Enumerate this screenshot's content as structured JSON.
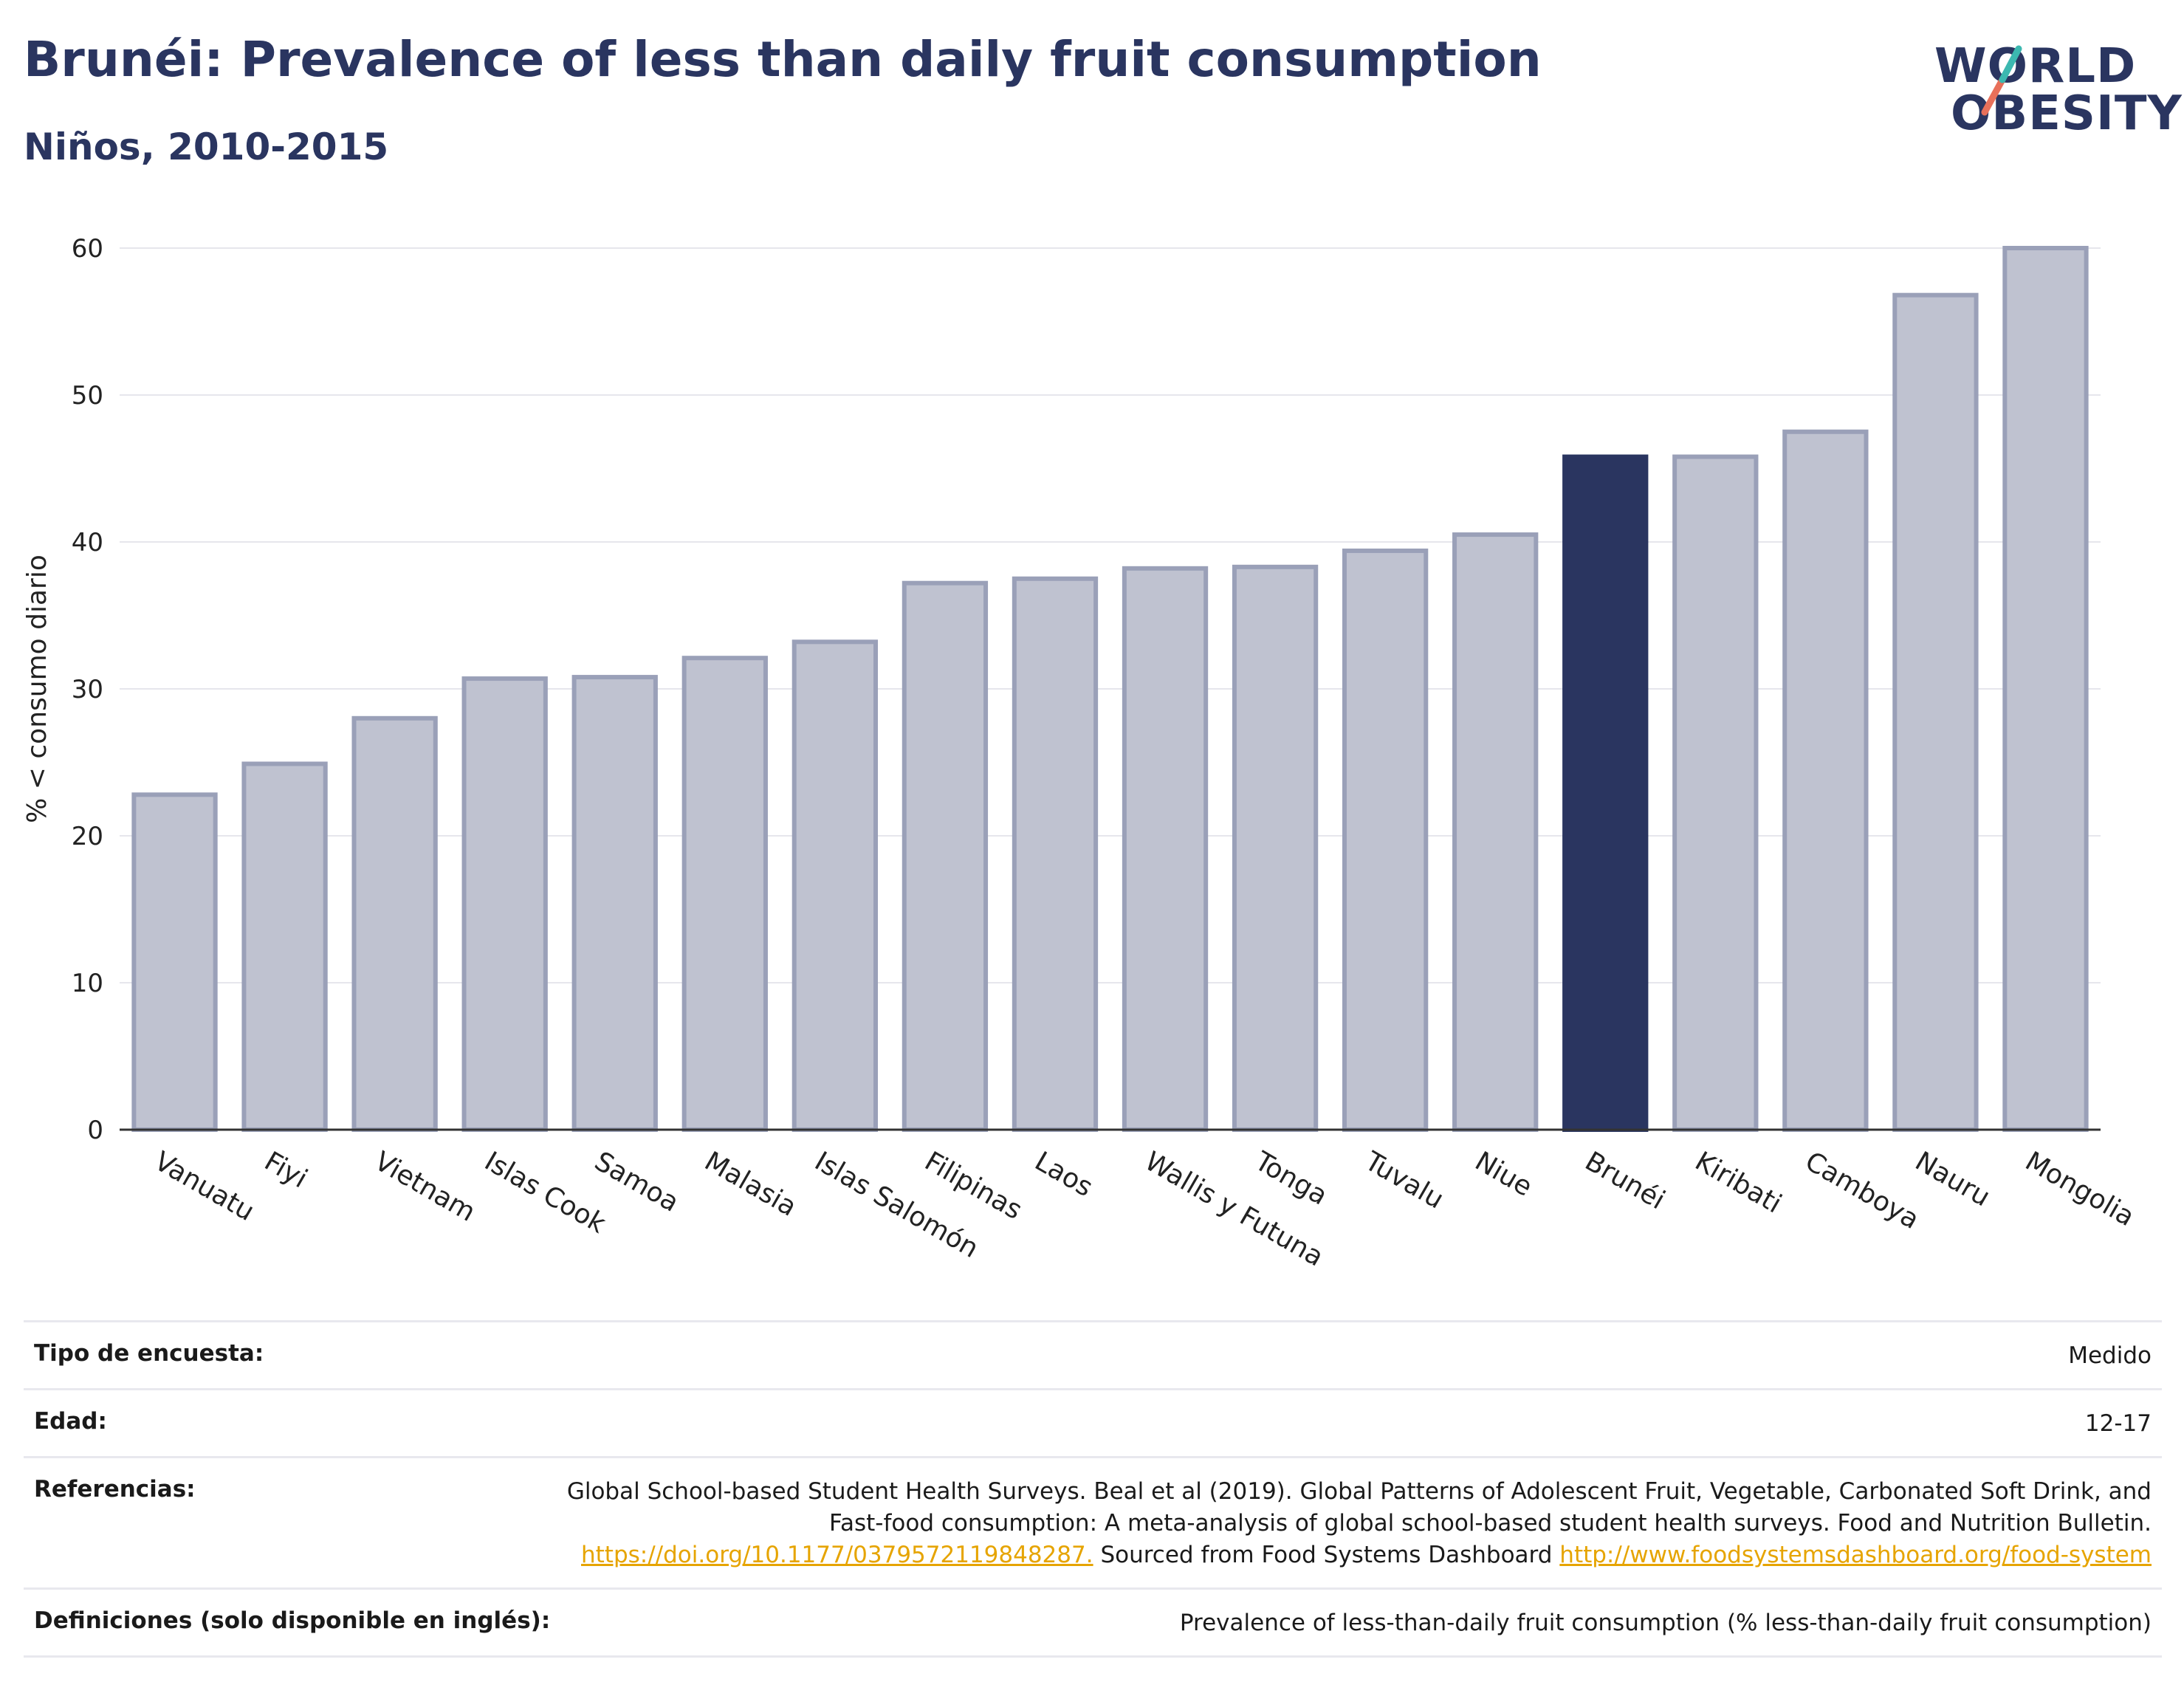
{
  "header": {
    "title": "Brunéi: Prevalence of less than daily fruit consumption",
    "subtitle": "Niños, 2010-2015"
  },
  "logo": {
    "line1": "WORLD",
    "line2": "OBESITY"
  },
  "chart_data": {
    "type": "bar",
    "title": "Brunéi: Prevalence of less than daily fruit consumption",
    "subtitle": "Niños, 2010-2015",
    "ylabel": "% < consumo diario",
    "xlabel": "",
    "ylim": [
      0,
      60
    ],
    "yticks": [
      0,
      10,
      20,
      30,
      40,
      50,
      60
    ],
    "grid": true,
    "highlight": "Brunéi",
    "colors": {
      "bar": "#bfc2d0",
      "bar_edge": "#9aa0b8",
      "highlight": "#2a3560"
    },
    "categories": [
      "Vanuatu",
      "Fiyi",
      "Vietnam",
      "Islas Cook",
      "Samoa",
      "Malasia",
      "Islas Salomón",
      "Filipinas",
      "Laos",
      "Wallis y Futuna",
      "Tonga",
      "Tuvalu",
      "Niue",
      "Brunéi",
      "Kiribati",
      "Camboya",
      "Nauru",
      "Mongolia"
    ],
    "values": [
      22.8,
      24.9,
      28.0,
      30.7,
      30.8,
      32.1,
      33.2,
      37.2,
      37.5,
      38.2,
      38.3,
      39.4,
      40.5,
      45.8,
      45.8,
      47.5,
      56.8,
      60.0
    ]
  },
  "meta": {
    "survey_type_label": "Tipo de encuesta:",
    "survey_type_value": "Medido",
    "age_label": "Edad:",
    "age_value": "12-17",
    "refs_label": "Referencias:",
    "refs_text_1": "Global School-based Student Health Surveys. Beal et al (2019). Global Patterns of Adolescent Fruit, Vegetable, Carbonated Soft Drink, and Fast-food consumption: A meta-analysis of global school-based student health surveys. Food and Nutrition Bulletin.",
    "refs_link_1": "https://doi.org/10.1177/0379572119848287.",
    "refs_text_2": "Sourced from Food Systems Dashboard",
    "refs_link_2": "http://www.foodsystemsdashboard.org/food-system",
    "defs_label": "Definiciones (solo disponible en inglés):",
    "defs_value": "Prevalence of less-than-daily fruit consumption (% less-than-daily fruit consumption)"
  }
}
